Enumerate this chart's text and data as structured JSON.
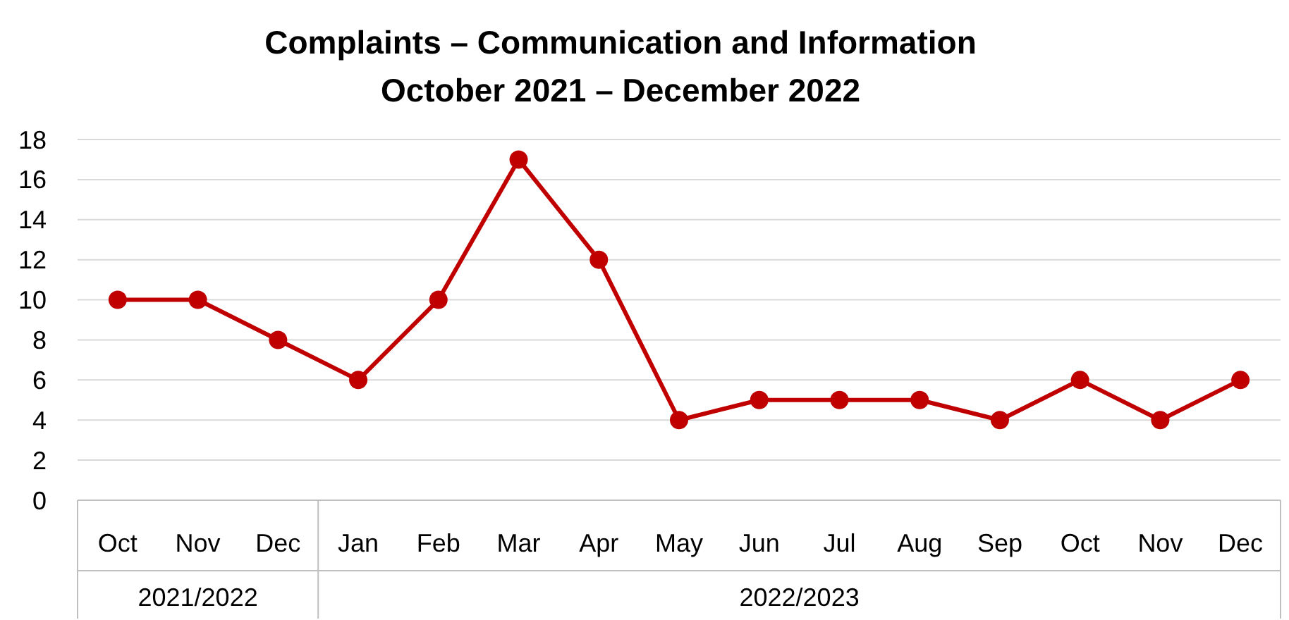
{
  "chart_data": {
    "type": "line",
    "title": "Complaints – Communication and Information",
    "subtitle": "October 2021 – December 2022",
    "categories": [
      "Oct",
      "Nov",
      "Dec",
      "Jan",
      "Feb",
      "Mar",
      "Apr",
      "May",
      "Jun",
      "Jul",
      "Aug",
      "Sep",
      "Oct",
      "Nov",
      "Dec"
    ],
    "series": [
      {
        "color": "#c00000",
        "values": [
          10,
          10,
          8,
          6,
          10,
          17,
          12,
          4,
          5,
          5,
          5,
          4,
          6,
          4,
          6
        ]
      }
    ],
    "ylim": [
      0,
      18
    ],
    "yticks": [
      0,
      2,
      4,
      6,
      8,
      10,
      12,
      14,
      16,
      18
    ],
    "grid": "y",
    "marker": "circle",
    "line_style": "solid",
    "annotations": [
      "2021/2022",
      "2022/2023"
    ]
  }
}
